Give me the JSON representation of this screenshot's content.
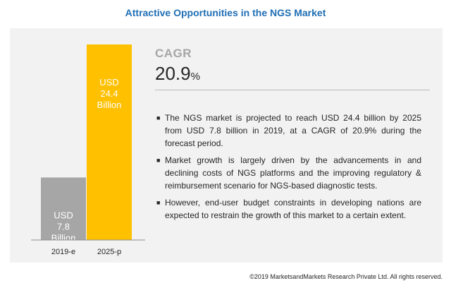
{
  "title": "Attractive Opportunities in the NGS Market",
  "chart_data": {
    "type": "bar",
    "categories": [
      "2019-e",
      "2025-p"
    ],
    "values": [
      7.8,
      24.4
    ],
    "value_labels": [
      [
        "USD",
        "7.8",
        "Billion"
      ],
      [
        "USD",
        "24.4",
        "Billion"
      ]
    ],
    "colors": [
      "#a6a6a6",
      "#ffc000"
    ],
    "ylim": [
      0,
      24.4
    ],
    "grid": false,
    "title": "",
    "xlabel": "",
    "ylabel": ""
  },
  "cagr": {
    "label": "CAGR",
    "value": "20.9",
    "unit": "%"
  },
  "bullets": [
    "The NGS market is projected to reach USD 24.4 billion by 2025 from USD 7.8 billion in 2019, at a CAGR of 20.9% during the forecast period.",
    "Market growth is largely driven by the advancements in and declining costs of NGS platforms and the improving regulatory & reimbursement scenario for NGS-based diagnostic tests.",
    "However, end-user budget constraints in developing nations are expected to restrain the growth of this market to a certain extent."
  ],
  "bullet_marker": "■",
  "copyright": "©2019 MarketsandMarkets Research Private Ltd. All rights reserved."
}
